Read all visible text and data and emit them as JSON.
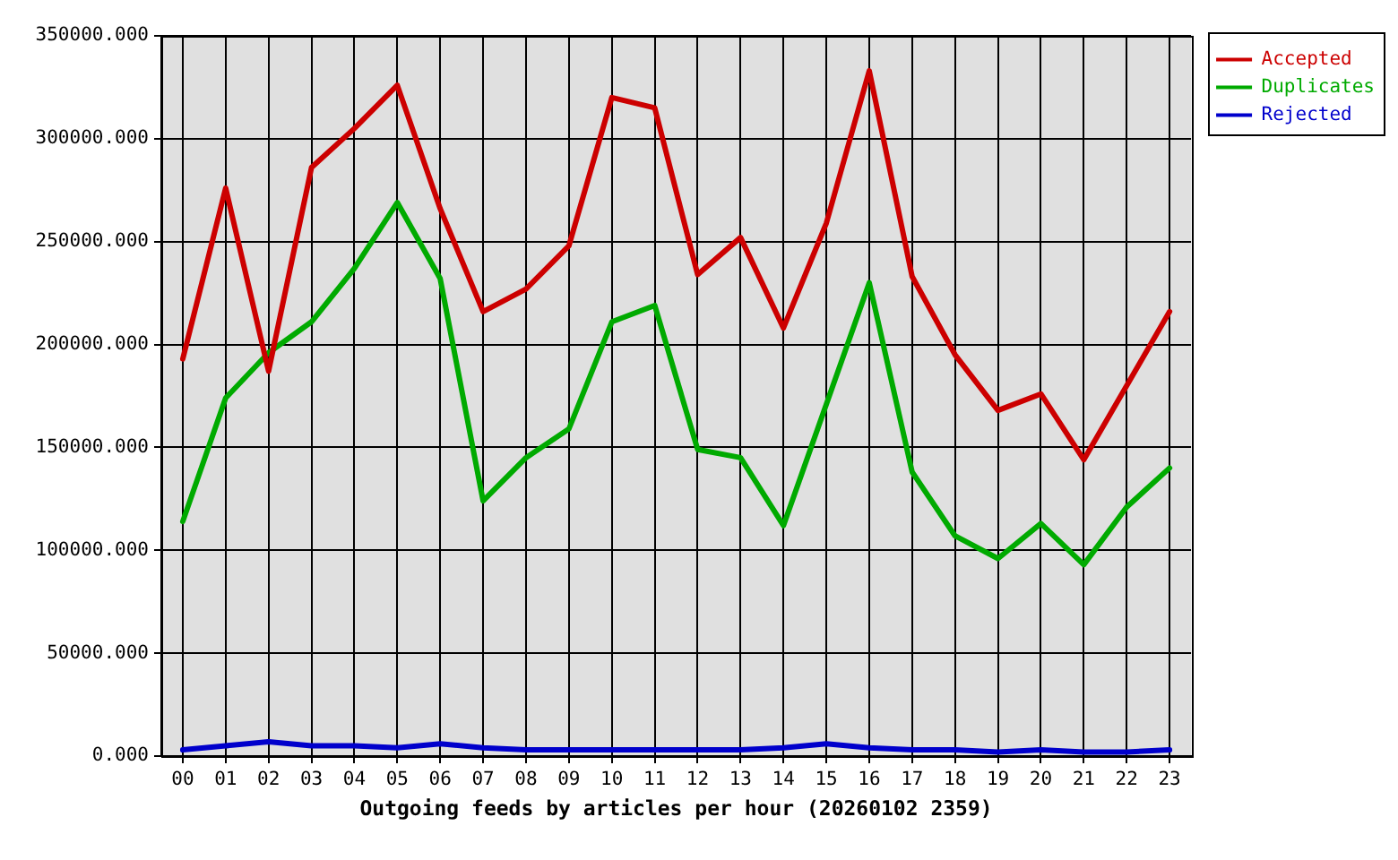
{
  "chart_data": {
    "type": "line",
    "xlabel": "Outgoing feeds by articles per hour (20260102 2359)",
    "categories": [
      "00",
      "01",
      "02",
      "03",
      "04",
      "05",
      "06",
      "07",
      "08",
      "09",
      "10",
      "11",
      "12",
      "13",
      "14",
      "15",
      "16",
      "17",
      "18",
      "19",
      "20",
      "21",
      "22",
      "23"
    ],
    "series": [
      {
        "name": "Accepted",
        "color": "#cc0000",
        "values": [
          193000,
          276000,
          187000,
          286000,
          305000,
          326000,
          266000,
          216000,
          227000,
          248000,
          320000,
          315000,
          234000,
          252000,
          208000,
          259000,
          333000,
          233000,
          195000,
          168000,
          176000,
          144000,
          180000,
          216000
        ]
      },
      {
        "name": "Duplicates",
        "color": "#00aa00",
        "values": [
          114000,
          174000,
          196000,
          211000,
          237000,
          269000,
          232000,
          124000,
          145000,
          159000,
          211000,
          219000,
          149000,
          145000,
          112000,
          171000,
          230000,
          138000,
          107000,
          96000,
          113000,
          93000,
          121000,
          140000
        ]
      },
      {
        "name": "Rejected",
        "color": "#0000cc",
        "values": [
          3000,
          5000,
          7000,
          5000,
          5000,
          4000,
          6000,
          4000,
          3000,
          3000,
          3000,
          3000,
          3000,
          3000,
          4000,
          6000,
          4000,
          3000,
          3000,
          2000,
          3000,
          2000,
          2000,
          3000
        ]
      }
    ],
    "ylim": [
      0,
      350000
    ],
    "yticks": [
      {
        "value": 0,
        "label": "0.000"
      },
      {
        "value": 50000,
        "label": "50000.000"
      },
      {
        "value": 100000,
        "label": "100000.000"
      },
      {
        "value": 150000,
        "label": "150000.000"
      },
      {
        "value": 200000,
        "label": "200000.000"
      },
      {
        "value": 250000,
        "label": "250000.000"
      },
      {
        "value": 300000,
        "label": "300000.000"
      },
      {
        "value": 350000,
        "label": "350000.000"
      }
    ],
    "grid": true,
    "legend": "top right",
    "marker": "none"
  }
}
